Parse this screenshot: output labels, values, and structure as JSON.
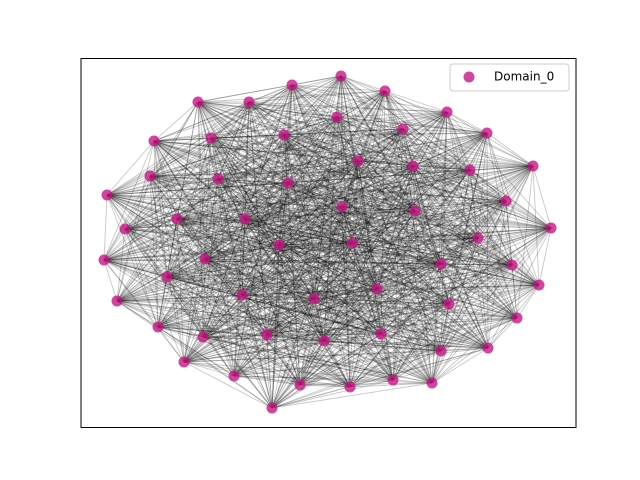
{
  "legend": {
    "label": "Domain_0"
  },
  "node_color": "#c71585"
}
